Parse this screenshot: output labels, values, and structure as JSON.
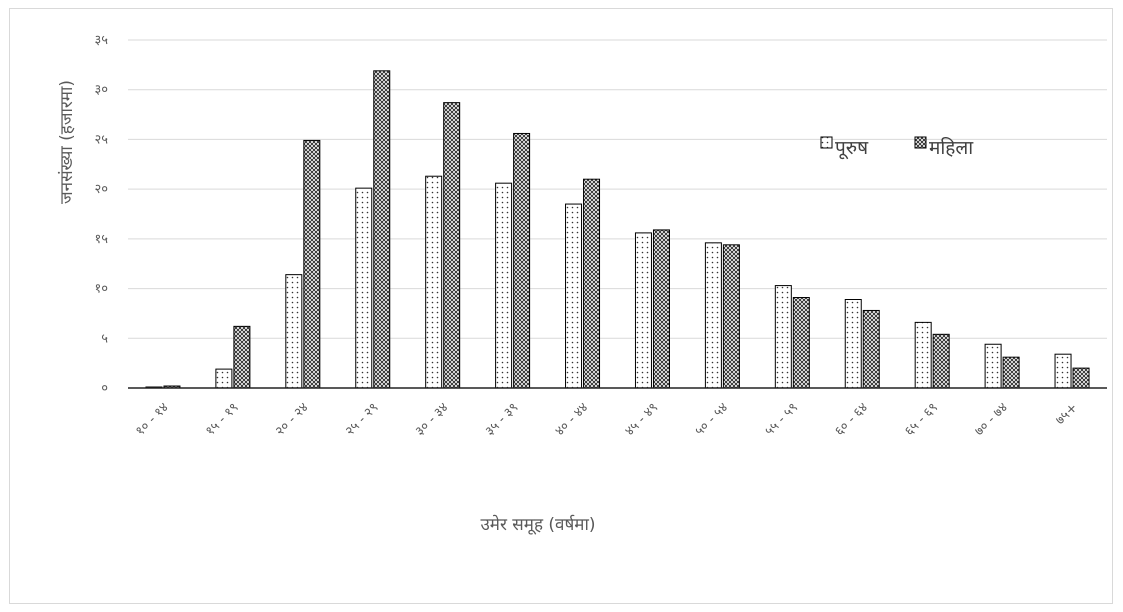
{
  "chart_data": {
    "type": "bar",
    "title": "",
    "xlabel": "उमेर समूह (वर्षमा)",
    "ylabel": "जनसंख्या (हजारमा)",
    "ylim": [
      0,
      35
    ],
    "yticks": [
      "०",
      "५",
      "१०",
      "१५",
      "२०",
      "२५",
      "३०",
      "३५"
    ],
    "ytick_values": [
      0,
      5,
      10,
      15,
      20,
      25,
      30,
      35
    ],
    "grid": true,
    "legend_position": "top-right",
    "categories": [
      "१० - १४",
      "१५ - १९",
      "२० - २४",
      "२५ - २९",
      "३० - ३४",
      "३५ - ३९",
      "४० - ४४",
      "४५ - ४९",
      "५० - ५४",
      "५५ - ५९",
      "६० - ६४",
      "६५ - ६९",
      "७० - ७४",
      "७५+"
    ],
    "series": [
      {
        "name": "पूरुष",
        "pattern": "dots",
        "values": [
          0.1,
          1.9,
          11.4,
          20.1,
          21.3,
          20.6,
          18.5,
          15.6,
          14.6,
          10.3,
          8.9,
          6.6,
          4.4,
          3.4
        ]
      },
      {
        "name": "महिला",
        "pattern": "cross",
        "values": [
          0.2,
          6.2,
          24.9,
          31.9,
          28.7,
          25.6,
          21.0,
          15.9,
          14.4,
          9.1,
          7.8,
          5.4,
          3.1,
          2.0
        ]
      }
    ]
  }
}
